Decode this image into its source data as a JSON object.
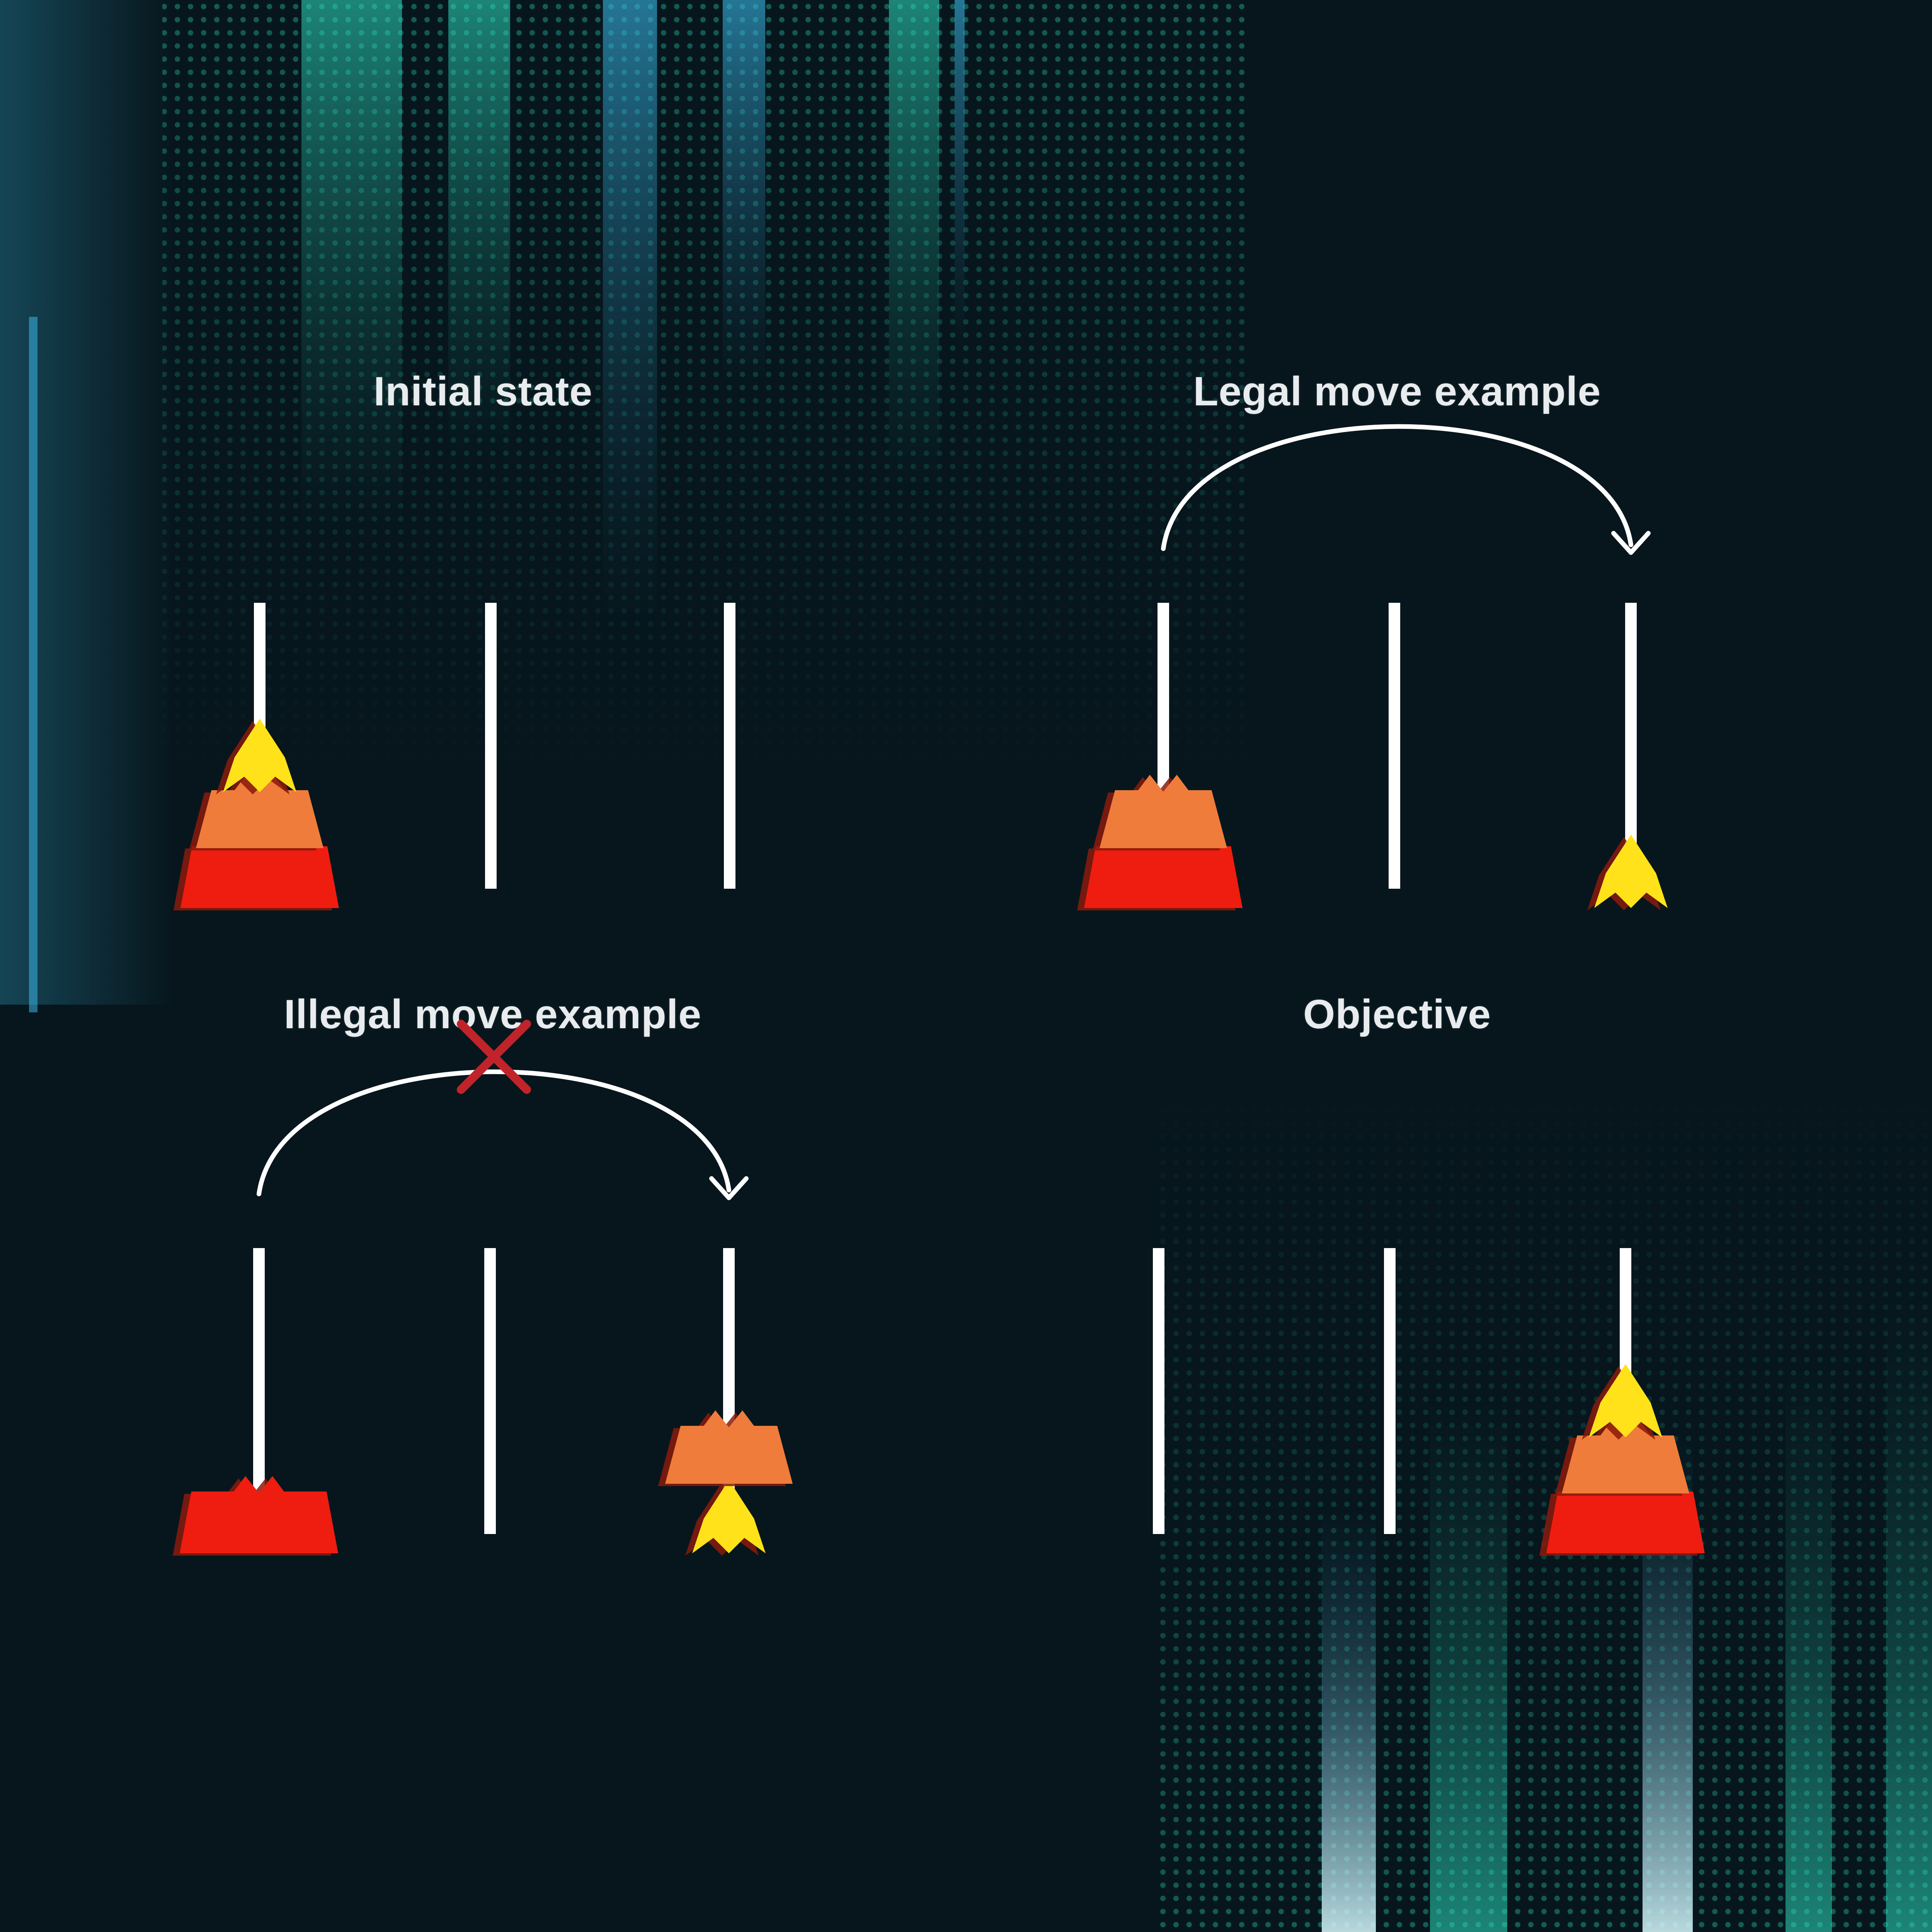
{
  "panels": {
    "initial_state": {
      "title": "Initial state",
      "pegs": [
        [
          "large-disk",
          "medium-disk",
          "small-disk"
        ],
        [],
        []
      ]
    },
    "legal_move": {
      "title": "Legal move example",
      "pegs": [
        [
          "large-disk",
          "medium-disk"
        ],
        [],
        [
          "small-disk"
        ]
      ],
      "move": {
        "from_peg": 1,
        "to_peg": 3,
        "allowed": true
      }
    },
    "illegal_move": {
      "title": "Illegal move example",
      "pegs": [
        [
          "large-disk"
        ],
        [],
        [
          "small-disk",
          "medium-disk"
        ]
      ],
      "move": {
        "from_peg": 1,
        "to_peg": 3,
        "allowed": false
      }
    },
    "objective": {
      "title": "Objective",
      "pegs": [
        [],
        [],
        [
          "large-disk",
          "medium-disk",
          "small-disk"
        ]
      ]
    }
  },
  "colors": {
    "background": "#07161d",
    "peg": "#ffffff",
    "large_disk": "#ee1d10",
    "medium_disk": "#ef7c3b",
    "small_disk": "#ffe21a",
    "disk_shadow": "#8a1a0c",
    "forbidden_mark": "#c0242a",
    "arrow": "#ffffff",
    "glow_teal": "#2fe0c0",
    "glow_blue": "#3ab6e6"
  }
}
